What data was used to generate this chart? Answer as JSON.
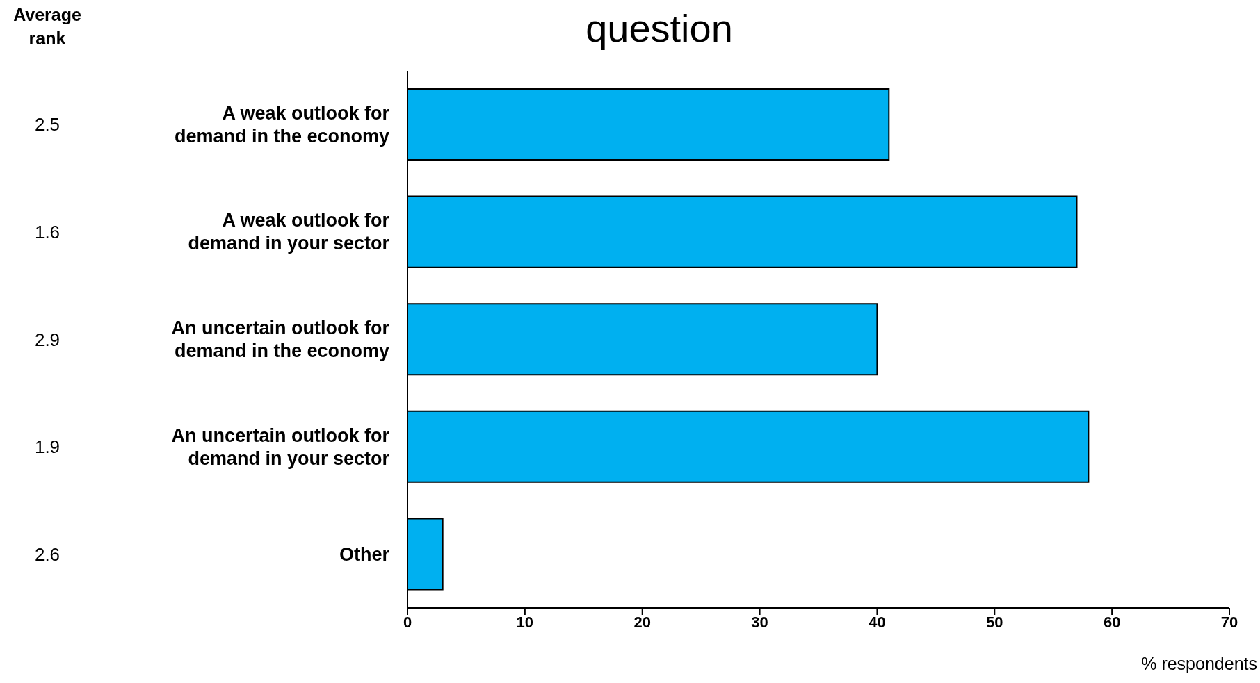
{
  "chart_data": {
    "type": "bar",
    "orientation": "horizontal",
    "title": "question",
    "xlabel": "% respondents",
    "categories": [
      "A weak outlook for demand in the economy",
      "A weak outlook for demand in your sector",
      "An uncertain outlook for demand in the economy",
      "An uncertain outlook for demand in your sector",
      "Other"
    ],
    "values": [
      41,
      57,
      40,
      58,
      3
    ],
    "color": "#00b0f0",
    "xlim": [
      0,
      70
    ],
    "xticks": [
      0,
      10,
      20,
      30,
      40,
      50,
      60,
      70
    ],
    "grid": false,
    "legend": false,
    "annotations": [
      "Average rank",
      "2.5",
      "1.6",
      "2.9",
      "1.9",
      "2.6"
    ]
  }
}
